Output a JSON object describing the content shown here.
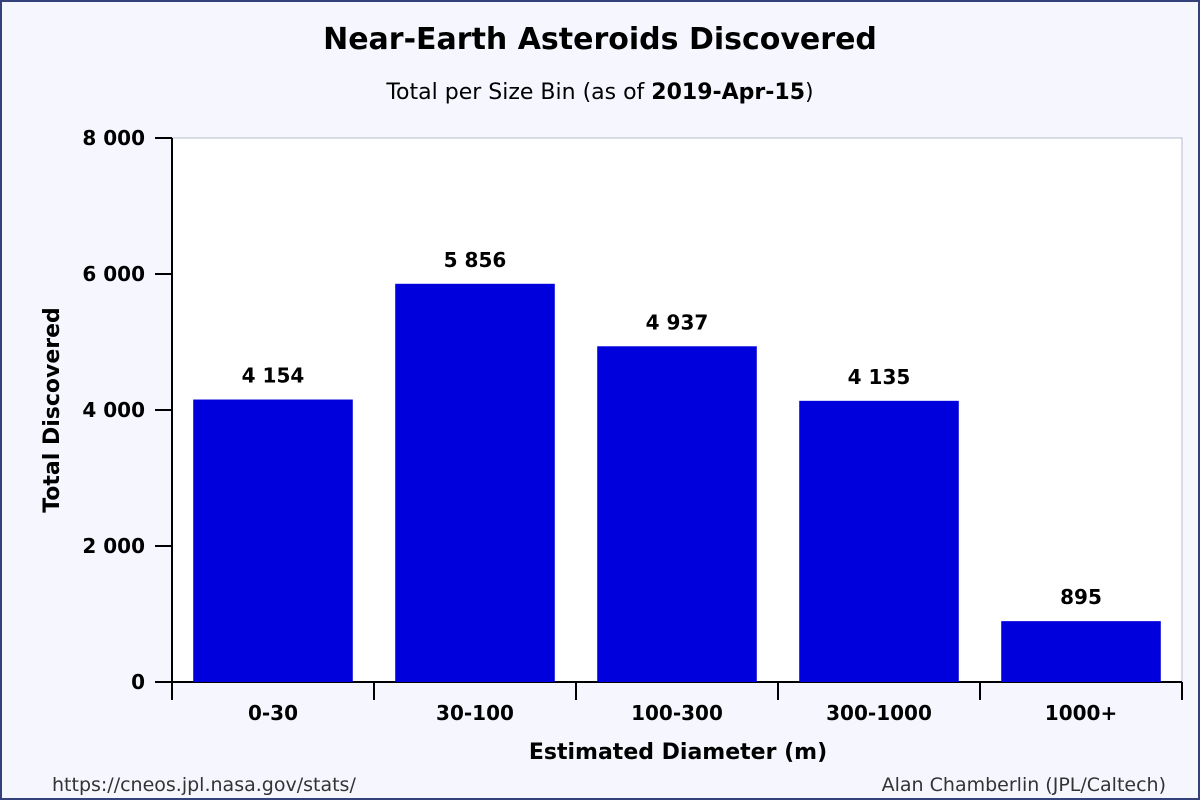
{
  "chart_data": {
    "type": "bar",
    "title": "Near-Earth Asteroids Discovered",
    "subtitle_prefix": "Total per Size Bin (as of ",
    "subtitle_date": "2019-Apr-15",
    "subtitle_suffix": ")",
    "xlabel": "Estimated Diameter (m)",
    "ylabel": "Total Discovered",
    "categories": [
      "0-30",
      "30-100",
      "100-300",
      "300-1000",
      "1000+"
    ],
    "values": [
      4154,
      5856,
      4937,
      4135,
      895
    ],
    "value_labels": [
      "4 154",
      "5 856",
      "4 937",
      "4 135",
      "895"
    ],
    "ylim": [
      0,
      8000
    ],
    "yticks": [
      0,
      2000,
      4000,
      6000,
      8000
    ],
    "ytick_labels": [
      "0",
      "2 000",
      "4 000",
      "6 000",
      "8 000"
    ],
    "grid": false,
    "bar_color": "#0000dd"
  },
  "footer": {
    "source_url": "https://cneos.jpl.nasa.gov/stats/",
    "credit": "Alan Chamberlin (JPL/Caltech)"
  }
}
